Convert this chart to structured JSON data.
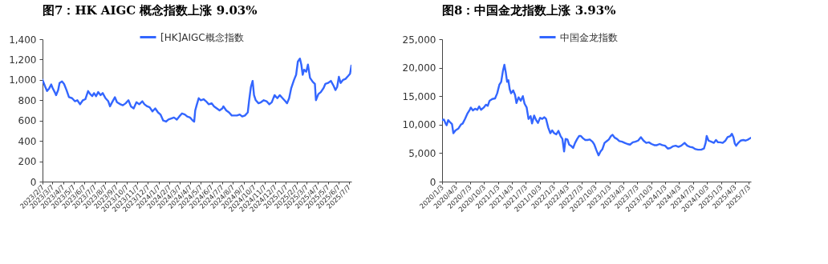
{
  "chart_data": [
    {
      "type": "line",
      "title": "图7：HK AIGC 概念指数上涨 9.03%",
      "legend": "top",
      "xlim": [
        "2023-02-07",
        "2025-07-14"
      ],
      "ylim": [
        0,
        1400
      ],
      "yticks": [
        0,
        200,
        400,
        600,
        800,
        {
          "value": 1000,
          "label": "1,000"
        },
        {
          "value": 1200,
          "label": "1,200"
        },
        {
          "value": 1400,
          "label": "1,400"
        }
      ],
      "xticks": [
        {
          "value": "2023-02-07",
          "label": "2023/2/7"
        },
        {
          "value": "2023-03-07",
          "label": "2023/3/7"
        },
        {
          "value": "2023-04-07",
          "label": "2023/4/7"
        },
        {
          "value": "2023-05-07",
          "label": "2023/5/7"
        },
        {
          "value": "2023-06-07",
          "label": "2023/6/7"
        },
        {
          "value": "2023-07-07",
          "label": "2023/7/7"
        },
        {
          "value": "2023-08-07",
          "label": "2023/8/7"
        },
        {
          "value": "2023-09-07",
          "label": "2023/9/7"
        },
        {
          "value": "2023-10-07",
          "label": "2023/10/7"
        },
        {
          "value": "2023-11-07",
          "label": "2023/11/7"
        },
        {
          "value": "2023-12-07",
          "label": "2023/12/7"
        },
        {
          "value": "2024-01-07",
          "label": "2024/1/7"
        },
        {
          "value": "2024-02-07",
          "label": "2024/2/7"
        },
        {
          "value": "2024-03-07",
          "label": "2024/3/7"
        },
        {
          "value": "2024-04-07",
          "label": "2024/4/7"
        },
        {
          "value": "2024-05-07",
          "label": "2024/5/7"
        },
        {
          "value": "2024-06-07",
          "label": "2024/6/7"
        },
        {
          "value": "2024-07-07",
          "label": "2024/7/7"
        },
        {
          "value": "2024-08-07",
          "label": "2024/8/7"
        },
        {
          "value": "2024-09-07",
          "label": "2024/9/7"
        },
        {
          "value": "2024-10-07",
          "label": "2024/10/7"
        },
        {
          "value": "2024-11-07",
          "label": "2024/11/7"
        },
        {
          "value": "2024-12-07",
          "label": "2024/12/7"
        },
        {
          "value": "2025-01-07",
          "label": "2025/1/7"
        },
        {
          "value": "2025-02-07",
          "label": "2025/2/7"
        },
        {
          "value": "2025-03-07",
          "label": "2025/3/7"
        },
        {
          "value": "2025-04-07",
          "label": "2025/4/7"
        },
        {
          "value": "2025-05-07",
          "label": "2025/5/7"
        },
        {
          "value": "2025-06-07",
          "label": "2025/6/7"
        },
        {
          "value": "2025-07-07",
          "label": "2025/7/7"
        }
      ],
      "series": [
        {
          "name": "[HK]AIGC概念指数",
          "color": "#3366ff",
          "x": [
            "2023-02-07",
            "2023-02-15",
            "2023-02-20",
            "2023-02-26",
            "2023-03-04",
            "2023-03-08",
            "2023-03-14",
            "2023-03-18",
            "2023-03-24",
            "2023-03-28",
            "2023-04-04",
            "2023-04-10",
            "2023-04-17",
            "2023-04-24",
            "2023-05-03",
            "2023-05-11",
            "2023-05-18",
            "2023-05-26",
            "2023-06-03",
            "2023-06-10",
            "2023-06-18",
            "2023-06-24",
            "2023-06-30",
            "2023-07-05",
            "2023-07-11",
            "2023-07-17",
            "2023-07-24",
            "2023-07-30",
            "2023-08-07",
            "2023-08-15",
            "2023-08-20",
            "2023-08-26",
            "2023-09-03",
            "2023-09-09",
            "2023-09-19",
            "2023-09-26",
            "2023-10-04",
            "2023-10-12",
            "2023-10-19",
            "2023-10-27",
            "2023-11-04",
            "2023-11-12",
            "2023-11-21",
            "2023-11-27",
            "2023-12-05",
            "2023-12-12",
            "2023-12-20",
            "2023-12-28",
            "2024-01-05",
            "2024-01-12",
            "2024-01-20",
            "2024-01-28",
            "2024-02-04",
            "2024-02-12",
            "2024-02-20",
            "2024-02-28",
            "2024-03-06",
            "2024-03-14",
            "2024-03-22",
            "2024-03-29",
            "2024-04-06",
            "2024-04-14",
            "2024-04-18",
            "2024-04-21",
            "2024-04-25",
            "2024-05-01",
            "2024-05-07",
            "2024-05-15",
            "2024-05-22",
            "2024-05-30",
            "2024-06-07",
            "2024-06-14",
            "2024-06-22",
            "2024-06-30",
            "2024-07-08",
            "2024-07-11",
            "2024-07-19",
            "2024-07-27",
            "2024-08-04",
            "2024-08-11",
            "2024-08-19",
            "2024-08-27",
            "2024-09-03",
            "2024-09-11",
            "2024-09-19",
            "2024-09-23",
            "2024-09-28",
            "2024-10-03",
            "2024-10-07",
            "2024-10-12",
            "2024-10-20",
            "2024-10-27",
            "2024-11-04",
            "2024-11-12",
            "2024-11-20",
            "2024-11-27",
            "2024-12-05",
            "2024-12-13",
            "2024-12-20",
            "2024-12-28",
            "2025-01-05",
            "2025-01-10",
            "2025-01-16",
            "2025-01-22",
            "2025-01-30",
            "2025-02-05",
            "2025-02-10",
            "2025-02-16",
            "2025-02-20",
            "2025-02-24",
            "2025-02-28",
            "2025-03-06",
            "2025-03-11",
            "2025-03-17",
            "2025-03-25",
            "2025-03-31",
            "2025-04-03",
            "2025-04-10",
            "2025-04-17",
            "2025-04-25",
            "2025-04-30",
            "2025-05-08",
            "2025-05-16",
            "2025-05-24",
            "2025-05-29",
            "2025-06-03",
            "2025-06-08",
            "2025-06-13",
            "2025-06-20",
            "2025-06-27",
            "2025-07-05",
            "2025-07-10",
            "2025-07-14"
          ],
          "values": [
            1000,
            930,
            890,
            915,
            955,
            920,
            880,
            850,
            900,
            970,
            985,
            960,
            900,
            830,
            820,
            790,
            800,
            760,
            800,
            810,
            890,
            860,
            840,
            870,
            840,
            880,
            850,
            870,
            820,
            790,
            740,
            780,
            830,
            780,
            760,
            750,
            770,
            800,
            740,
            720,
            780,
            760,
            790,
            760,
            740,
            730,
            690,
            720,
            680,
            660,
            600,
            590,
            610,
            620,
            630,
            610,
            640,
            670,
            660,
            640,
            630,
            600,
            590,
            700,
            750,
            820,
            800,
            810,
            790,
            760,
            770,
            740,
            720,
            700,
            720,
            740,
            700,
            680,
            650,
            650,
            650,
            660,
            640,
            650,
            680,
            800,
            930,
            990,
            850,
            800,
            770,
            780,
            800,
            790,
            760,
            780,
            850,
            820,
            850,
            820,
            790,
            770,
            820,
            920,
            1000,
            1050,
            1180,
            1210,
            1150,
            1050,
            1100,
            1080,
            1150,
            1020,
            980,
            960,
            800,
            860,
            880,
            920,
            960,
            970,
            990,
            940,
            900,
            930,
            1030,
            970,
            1000,
            1010,
            1040,
            1060,
            1140
          ]
        }
      ]
    },
    {
      "type": "line",
      "title": "图8：中国金龙指数上涨 3.93%",
      "legend": "top",
      "xlim": [
        "2020-01-03",
        "2025-07-18"
      ],
      "ylim": [
        0,
        25000
      ],
      "yticks": [
        0,
        {
          "value": 5000,
          "label": "5,000"
        },
        {
          "value": 10000,
          "label": "10,000"
        },
        {
          "value": 15000,
          "label": "15,000"
        },
        {
          "value": 20000,
          "label": "20,000"
        },
        {
          "value": 25000,
          "label": "25,000"
        }
      ],
      "xticks": [
        {
          "value": "2020-01-03",
          "label": "2020/1/3"
        },
        {
          "value": "2020-04-03",
          "label": "2020/4/3"
        },
        {
          "value": "2020-07-03",
          "label": "2020/7/3"
        },
        {
          "value": "2020-10-03",
          "label": "2020/10/3"
        },
        {
          "value": "2021-01-03",
          "label": "2021/1/3"
        },
        {
          "value": "2021-04-03",
          "label": "2021/4/3"
        },
        {
          "value": "2021-07-03",
          "label": "2021/7/3"
        },
        {
          "value": "2021-10-03",
          "label": "2021/10/3"
        },
        {
          "value": "2022-01-03",
          "label": "2022/1/3"
        },
        {
          "value": "2022-04-03",
          "label": "2022/4/3"
        },
        {
          "value": "2022-07-03",
          "label": "2022/7/3"
        },
        {
          "value": "2022-10-03",
          "label": "2022/10/3"
        },
        {
          "value": "2023-01-03",
          "label": "2023/1/3"
        },
        {
          "value": "2023-04-03",
          "label": "2023/4/3"
        },
        {
          "value": "2023-07-03",
          "label": "2023/7/3"
        },
        {
          "value": "2023-10-03",
          "label": "2023/10/3"
        },
        {
          "value": "2024-01-03",
          "label": "2024/1/3"
        },
        {
          "value": "2024-04-03",
          "label": "2024/4/3"
        },
        {
          "value": "2024-07-03",
          "label": "2024/7/3"
        },
        {
          "value": "2024-10-03",
          "label": "2024/10/3"
        },
        {
          "value": "2025-01-03",
          "label": "2025/1/3"
        },
        {
          "value": "2025-04-03",
          "label": "2025/4/3"
        },
        {
          "value": "2025-07-03",
          "label": "2025/7/3"
        }
      ],
      "series": [
        {
          "name": "中国金龙指数",
          "color": "#3366ff",
          "x": [
            "2020-01-03",
            "2020-01-15",
            "2020-01-26",
            "2020-02-02",
            "2020-02-12",
            "2020-02-25",
            "2020-03-08",
            "2020-03-17",
            "2020-03-31",
            "2020-04-18",
            "2020-05-05",
            "2020-05-17",
            "2020-06-01",
            "2020-06-18",
            "2020-07-02",
            "2020-07-09",
            "2020-07-23",
            "2020-08-06",
            "2020-08-20",
            "2020-09-02",
            "2020-09-14",
            "2020-10-02",
            "2020-10-16",
            "2020-10-28",
            "2020-11-09",
            "2020-11-27",
            "2020-12-15",
            "2020-12-29",
            "2021-01-12",
            "2021-01-24",
            "2021-02-05",
            "2021-02-14",
            "2021-02-23",
            "2021-03-04",
            "2021-03-12",
            "2021-03-21",
            "2021-03-30",
            "2021-04-13",
            "2021-04-25",
            "2021-05-04",
            "2021-05-18",
            "2021-06-01",
            "2021-06-15",
            "2021-06-26",
            "2021-07-10",
            "2021-07-22",
            "2021-08-05",
            "2021-08-14",
            "2021-08-28",
            "2021-09-10",
            "2021-09-22",
            "2021-10-06",
            "2021-10-20",
            "2021-11-03",
            "2021-11-14",
            "2021-11-28",
            "2021-12-12",
            "2021-12-24",
            "2022-01-06",
            "2022-01-20",
            "2022-02-03",
            "2022-02-17",
            "2022-03-01",
            "2022-03-12",
            "2022-03-22",
            "2022-04-03",
            "2022-04-14",
            "2022-04-26",
            "2022-05-10",
            "2022-05-23",
            "2022-06-06",
            "2022-06-18",
            "2022-06-30",
            "2022-07-14",
            "2022-07-29",
            "2022-08-12",
            "2022-08-27",
            "2022-09-14",
            "2022-09-26",
            "2022-10-10",
            "2022-10-24",
            "2022-11-06",
            "2022-11-18",
            "2022-12-02",
            "2022-12-16",
            "2022-12-30",
            "2023-01-13",
            "2023-01-24",
            "2023-02-07",
            "2023-02-21",
            "2023-03-09",
            "2023-03-27",
            "2023-04-13",
            "2023-05-01",
            "2023-05-18",
            "2023-06-05",
            "2023-06-22",
            "2023-07-10",
            "2023-07-28",
            "2023-08-14",
            "2023-09-01",
            "2023-09-18",
            "2023-10-06",
            "2023-10-24",
            "2023-11-10",
            "2023-11-28",
            "2023-12-15",
            "2024-01-02",
            "2024-01-20",
            "2024-02-06",
            "2024-02-24",
            "2024-03-12",
            "2024-03-30",
            "2024-04-17",
            "2024-05-09",
            "2024-05-27",
            "2024-06-14",
            "2024-07-01",
            "2024-07-19",
            "2024-08-05",
            "2024-08-26",
            "2024-09-13",
            "2024-09-24",
            "2024-10-01",
            "2024-10-13",
            "2024-10-31",
            "2024-11-17",
            "2024-12-01",
            "2024-12-14",
            "2024-12-28",
            "2025-01-14",
            "2025-02-01",
            "2025-02-15",
            "2025-03-05",
            "2025-03-15",
            "2025-03-25",
            "2025-04-03",
            "2025-04-12",
            "2025-04-26",
            "2025-05-12",
            "2025-05-28",
            "2025-06-13",
            "2025-06-30",
            "2025-07-18"
          ],
          "values": [
            10800,
            10900,
            10200,
            9900,
            10800,
            10400,
            10100,
            8500,
            9000,
            9300,
            10000,
            10200,
            11000,
            12000,
            12600,
            13000,
            12500,
            12800,
            12600,
            13200,
            12600,
            13000,
            13500,
            13300,
            14200,
            14500,
            14600,
            15500,
            17000,
            17500,
            19500,
            20500,
            19200,
            17500,
            17800,
            16200,
            15500,
            16000,
            15200,
            13800,
            14800,
            14200,
            15000,
            13700,
            13000,
            11000,
            11500,
            10200,
            11600,
            10800,
            10300,
            11200,
            11000,
            11300,
            11000,
            9500,
            8500,
            9000,
            8500,
            8300,
            8900,
            8000,
            7500,
            5300,
            7500,
            7400,
            6500,
            6300,
            5900,
            6800,
            7500,
            8000,
            8000,
            7600,
            7300,
            7300,
            7400,
            7000,
            6500,
            5500,
            4600,
            5300,
            5700,
            6800,
            7100,
            7400,
            8000,
            8200,
            7700,
            7500,
            7100,
            7000,
            6800,
            6600,
            6500,
            6900,
            7000,
            7200,
            7800,
            7200,
            6800,
            6900,
            6600,
            6400,
            6400,
            6600,
            6400,
            6300,
            5800,
            5900,
            6200,
            6300,
            6100,
            6300,
            6800,
            6300,
            6100,
            6000,
            5700,
            5600,
            5600,
            5800,
            6800,
            8000,
            7200,
            7000,
            6800,
            7300,
            6900,
            6900,
            6800,
            7200,
            7800,
            8000,
            8400,
            7800,
            6700,
            6300,
            6800,
            7200,
            7300,
            7200,
            7400,
            7700
          ]
        }
      ]
    }
  ]
}
